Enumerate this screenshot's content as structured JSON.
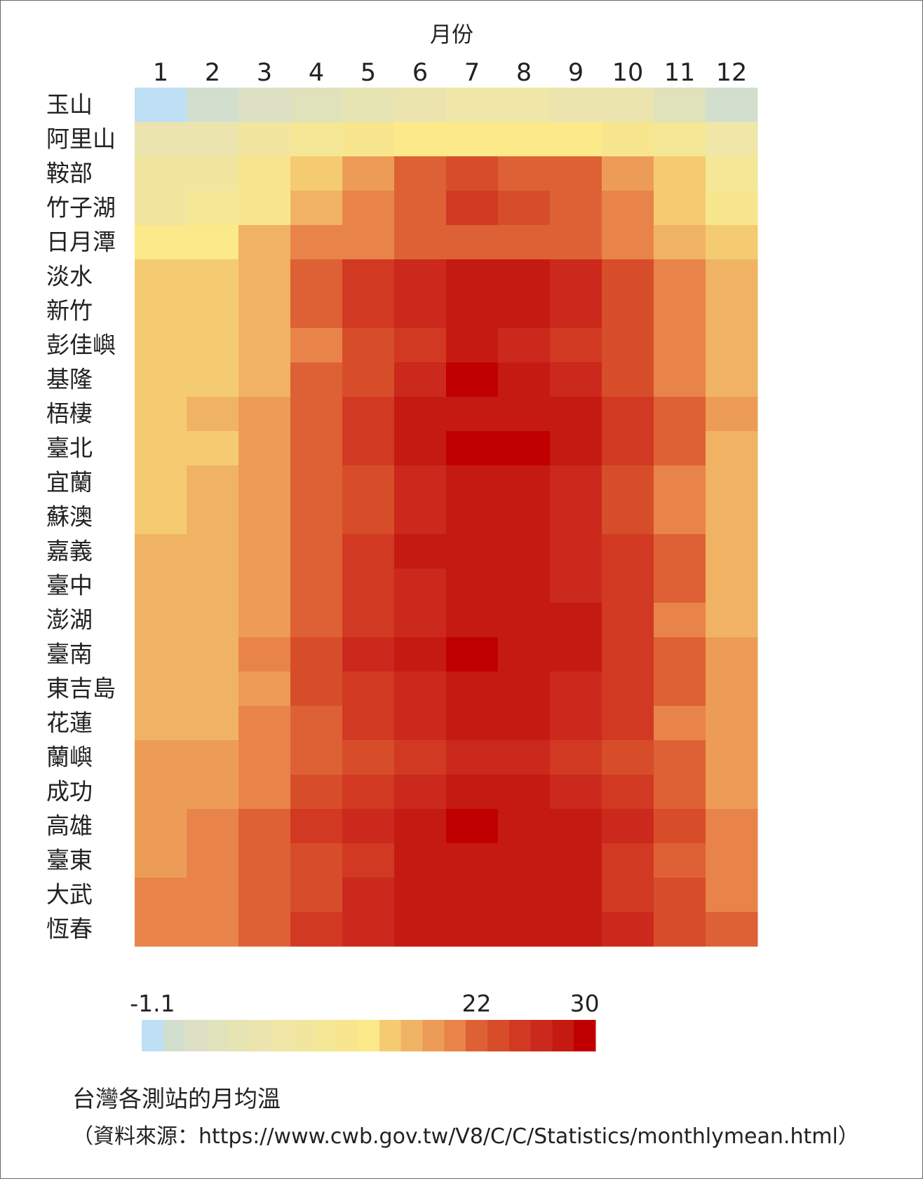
{
  "chart_data": {
    "type": "heatmap",
    "xlabel": "月份",
    "x": [
      "1",
      "2",
      "3",
      "4",
      "5",
      "6",
      "7",
      "8",
      "9",
      "10",
      "11",
      "12"
    ],
    "y": [
      "玉山",
      "阿里山",
      "鞍部",
      "竹子湖",
      "日月潭",
      "淡水",
      "新竹",
      "彭佳嶼",
      "基隆",
      "梧棲",
      "臺北",
      "宜蘭",
      "蘇澳",
      "嘉義",
      "臺中",
      "澎湖",
      "臺南",
      "東吉島",
      "花蓮",
      "蘭嶼",
      "成功",
      "高雄",
      "臺東",
      "大武",
      "恆春"
    ],
    "values": [
      [
        -1.1,
        -0.2,
        1.5,
        3.6,
        5.8,
        7.2,
        8.0,
        7.9,
        7.2,
        6.0,
        3.4,
        0.2
      ],
      [
        6.0,
        7.0,
        9.5,
        11.5,
        13.0,
        14.0,
        14.3,
        14.2,
        13.8,
        13.0,
        11.0,
        8.0
      ],
      [
        9.5,
        10.5,
        12.5,
        16.0,
        19.5,
        21.7,
        23.3,
        22.9,
        21.7,
        19.0,
        15.5,
        11.5
      ],
      [
        10.5,
        11.2,
        13.5,
        17.0,
        20.5,
        23.0,
        24.6,
        24.4,
        22.8,
        20.0,
        16.5,
        12.5
      ],
      [
        14.0,
        15.0,
        17.5,
        20.0,
        21.0,
        22.0,
        22.5,
        22.5,
        21.5,
        20.5,
        18.0,
        15.5
      ],
      [
        15.7,
        16.0,
        18.0,
        21.5,
        24.6,
        27.2,
        28.9,
        28.7,
        27.0,
        24.0,
        21.0,
        17.5
      ],
      [
        15.5,
        16.0,
        18.0,
        21.7,
        24.8,
        27.5,
        29.2,
        28.8,
        27.4,
        24.5,
        21.3,
        17.5
      ],
      [
        15.8,
        16.0,
        17.5,
        20.5,
        23.6,
        26.0,
        27.8,
        27.6,
        26.1,
        24.0,
        21.0,
        17.5
      ],
      [
        16.3,
        16.5,
        18.3,
        21.5,
        24.5,
        27.5,
        29.6,
        29.2,
        27.2,
        24.5,
        21.2,
        18.0
      ],
      [
        16.5,
        17.0,
        19.0,
        22.0,
        25.5,
        27.8,
        29.1,
        28.9,
        27.7,
        24.9,
        21.8,
        18.5
      ],
      [
        16.1,
        16.5,
        18.5,
        22.0,
        25.1,
        27.8,
        30.0,
        29.4,
        27.8,
        24.9,
        21.8,
        18.0
      ],
      [
        16.5,
        17.0,
        18.8,
        21.5,
        24.2,
        26.6,
        28.3,
        28.0,
        26.5,
        23.8,
        21.0,
        18.0
      ],
      [
        16.7,
        17.2,
        18.8,
        21.5,
        24.2,
        26.6,
        28.3,
        28.1,
        26.6,
        23.7,
        21.0,
        18.0
      ],
      [
        17.0,
        17.5,
        19.5,
        23.0,
        25.8,
        27.8,
        28.5,
        28.1,
        27.5,
        25.0,
        21.5,
        18.0
      ],
      [
        16.8,
        17.5,
        19.5,
        23.0,
        26.0,
        27.6,
        28.5,
        28.3,
        27.6,
        25.2,
        21.5,
        18.0
      ],
      [
        17.0,
        17.0,
        19.0,
        22.9,
        25.6,
        27.6,
        28.8,
        28.6,
        27.7,
        25.3,
        21.3,
        18.0
      ],
      [
        17.5,
        18.0,
        20.5,
        24.5,
        27.1,
        28.8,
        29.5,
        29.1,
        28.5,
        26.0,
        22.5,
        19.0
      ],
      [
        17.5,
        17.7,
        19.5,
        23.5,
        25.7,
        27.5,
        28.5,
        28.3,
        27.4,
        25.3,
        22.6,
        19.0
      ],
      [
        18.0,
        18.2,
        20.0,
        22.5,
        25.0,
        27.0,
        28.3,
        28.2,
        26.9,
        24.7,
        21.4,
        19.0
      ],
      [
        19.5,
        19.8,
        21.0,
        21.5,
        24.0,
        25.8,
        26.8,
        26.6,
        25.8,
        23.8,
        21.5,
        19.5
      ],
      [
        19.0,
        19.3,
        20.5,
        23.1,
        25.2,
        27.1,
        28.5,
        28.4,
        27.2,
        25.1,
        22.3,
        19.5
      ],
      [
        19.3,
        20.0,
        22.0,
        25.2,
        27.4,
        28.7,
        29.5,
        29.2,
        28.5,
        26.7,
        23.9,
        20.5
      ],
      [
        19.5,
        20.0,
        21.8,
        23.8,
        26.1,
        27.9,
        29.2,
        29.0,
        27.7,
        25.6,
        22.9,
        20.5
      ],
      [
        20.0,
        20.5,
        22.1,
        24.5,
        26.5,
        27.9,
        28.9,
        28.6,
        27.7,
        26.1,
        24.3,
        20.7
      ],
      [
        20.5,
        20.5,
        23.0,
        25.5,
        27.3,
        28.2,
        28.8,
        28.6,
        27.8,
        26.3,
        24.2,
        21.5
      ]
    ],
    "colorbar": {
      "ticks": [
        "-1.1",
        "22",
        "30"
      ],
      "colors": [
        "#bfdff5",
        "#d3dfce",
        "#dde0c4",
        "#e0e2bc",
        "#e6e4b3",
        "#ebe4ae",
        "#efe6a8",
        "#f1e59f",
        "#f4e796",
        "#f8e68f",
        "#fbe98a",
        "#f5cb71",
        "#f0b364",
        "#ec9c57",
        "#e8844a",
        "#de6135",
        "#d74d2a",
        "#d13923",
        "#cb291c",
        "#c51a12",
        "#c00000"
      ]
    }
  },
  "caption": {
    "title": "台灣各測站的月均溫",
    "source": "（資料來源：https://www.cwb.gov.tw/V8/C/C/Statistics/monthlymean.html）"
  }
}
